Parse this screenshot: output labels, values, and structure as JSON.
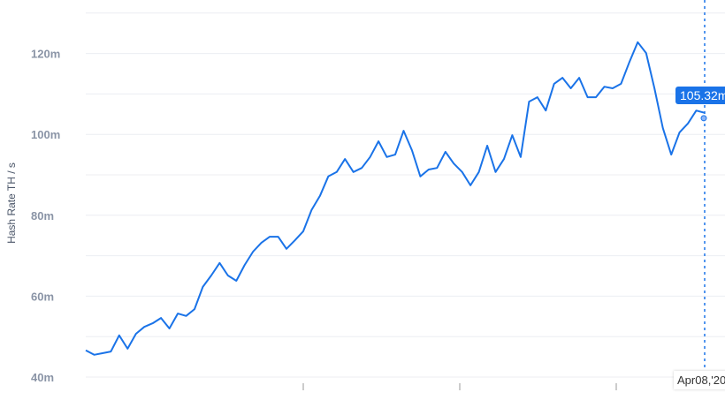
{
  "chart_data": {
    "type": "line",
    "title": "",
    "ylabel": "Hash Rate TH / s",
    "xlabel": "",
    "ylim": [
      40,
      130
    ],
    "yticks": [
      "40m",
      "60m",
      "80m",
      "100m",
      "120m"
    ],
    "ytick_values": [
      40,
      60,
      80,
      100,
      120
    ],
    "grid": true,
    "line_color": "#1a73e8",
    "series": [
      {
        "values": [
          46.6,
          45.5,
          45.9,
          46.3,
          50.3,
          47.0,
          50.7,
          52.4,
          53.3,
          54.6,
          52.0,
          55.7,
          55.1,
          56.8,
          62.3,
          65.1,
          68.2,
          65.1,
          63.8,
          67.7,
          71.0,
          73.2,
          74.7,
          74.7,
          71.7,
          73.8,
          76.0,
          81.3,
          84.8,
          89.6,
          90.7,
          93.9,
          90.7,
          91.7,
          94.4,
          98.3,
          94.4,
          95.0,
          100.9,
          96.1,
          89.6,
          91.3,
          91.7,
          95.7,
          92.8,
          90.7,
          87.4,
          90.7,
          97.2,
          90.7,
          93.9,
          99.8,
          94.4,
          108.1,
          109.2,
          105.9,
          112.5,
          114.0,
          111.4,
          114.0,
          109.2,
          109.2,
          111.8,
          111.4,
          112.5,
          117.9,
          122.8,
          120.1,
          111.4,
          101.6,
          95.0,
          100.5,
          102.7,
          105.9,
          105.32
        ]
      }
    ],
    "tooltip": {
      "value": "105.32m",
      "date": "Apr08,'20"
    }
  }
}
